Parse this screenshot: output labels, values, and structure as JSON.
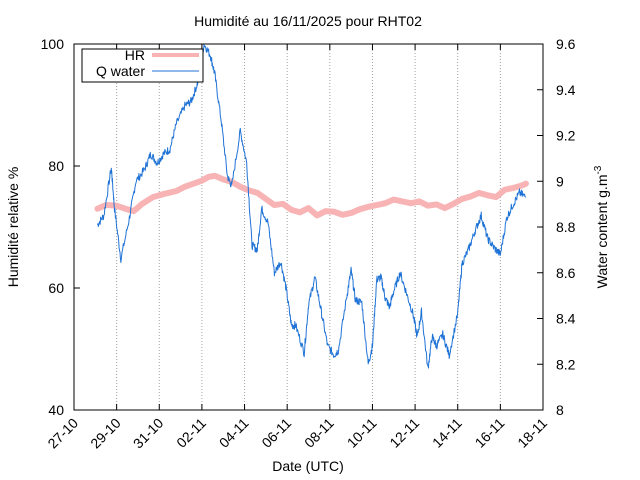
{
  "chart_data": {
    "type": "line",
    "title": "Humidité au 16/11/2025 pour RHT02",
    "xlabel": "Date (UTC)",
    "ylabel": "Humidité relative %",
    "y2label_main": "Water content g.m",
    "y2label_sup": "-3",
    "xlim": [
      0,
      22
    ],
    "ylim": [
      40,
      100
    ],
    "y2lim": [
      8,
      9.6
    ],
    "grid": "vertical-dotted",
    "legend_position": "top-left",
    "x_ticks": [
      {
        "pos": 0,
        "label": "27-10"
      },
      {
        "pos": 2,
        "label": "29-10"
      },
      {
        "pos": 4,
        "label": "31-10"
      },
      {
        "pos": 6,
        "label": "02-11"
      },
      {
        "pos": 8,
        "label": "04-11"
      },
      {
        "pos": 10,
        "label": "06-11"
      },
      {
        "pos": 12,
        "label": "08-11"
      },
      {
        "pos": 14,
        "label": "10-11"
      },
      {
        "pos": 16,
        "label": "12-11"
      },
      {
        "pos": 18,
        "label": "14-11"
      },
      {
        "pos": 20,
        "label": "16-11"
      },
      {
        "pos": 22,
        "label": "18-11"
      }
    ],
    "y_ticks": [
      "40",
      "60",
      "80",
      "100"
    ],
    "y2_ticks": [
      "8",
      "8.2",
      "8.4",
      "8.6",
      "8.8",
      "9",
      "9.2",
      "9.4",
      "9.6"
    ],
    "series": [
      {
        "name": "HR",
        "axis": "left",
        "color": "#f8b4b4",
        "x": [
          1.1,
          1.5,
          2.0,
          2.4,
          2.8,
          3.2,
          3.7,
          4.2,
          4.8,
          5.2,
          5.6,
          6.0,
          6.3,
          6.6,
          7.0,
          7.4,
          7.8,
          8.2,
          8.6,
          9.0,
          9.4,
          9.8,
          10.2,
          10.6,
          11.0,
          11.4,
          11.8,
          12.2,
          12.6,
          13.0,
          13.4,
          13.8,
          14.2,
          14.6,
          15.0,
          15.4,
          15.8,
          16.2,
          16.6,
          17.0,
          17.4,
          17.8,
          18.2,
          18.6,
          19.0,
          19.4,
          19.8,
          20.2,
          20.6,
          21.0,
          21.2
        ],
        "y": [
          73.0,
          73.6,
          73.5,
          73.0,
          72.6,
          73.8,
          74.9,
          75.4,
          75.9,
          76.6,
          77.1,
          77.6,
          78.2,
          78.4,
          77.8,
          77.4,
          76.6,
          76.0,
          75.6,
          74.6,
          73.6,
          73.8,
          72.8,
          72.4,
          73.1,
          71.9,
          72.6,
          72.5,
          72.0,
          72.3,
          72.9,
          73.3,
          73.6,
          73.9,
          74.5,
          74.2,
          73.9,
          74.2,
          73.5,
          73.7,
          73.1,
          73.8,
          74.6,
          75.0,
          75.6,
          75.2,
          74.9,
          76.1,
          76.4,
          76.8,
          77.1
        ]
      },
      {
        "name": "Q water",
        "axis": "right",
        "color": "#1f73d6",
        "x": [
          1.1,
          1.4,
          1.75,
          1.9,
          2.2,
          2.6,
          2.9,
          3.3,
          3.6,
          3.9,
          4.2,
          4.5,
          4.8,
          5.2,
          5.5,
          5.8,
          6.1,
          6.4,
          6.6,
          6.9,
          7.2,
          7.4,
          7.8,
          8.1,
          8.35,
          8.6,
          8.8,
          9.1,
          9.4,
          9.7,
          9.95,
          10.2,
          10.4,
          10.8,
          11.0,
          11.3,
          11.6,
          11.9,
          12.2,
          12.4,
          12.8,
          13.0,
          13.2,
          13.5,
          13.8,
          14.0,
          14.2,
          14.4,
          14.6,
          14.8,
          15.0,
          15.3,
          15.6,
          15.9,
          16.1,
          16.3,
          16.6,
          16.8,
          17.0,
          17.3,
          17.6,
          18.0,
          18.2,
          18.5,
          18.8,
          19.1,
          19.4,
          19.7,
          20.0,
          20.3,
          20.6,
          20.9,
          21.2
        ],
        "y": [
          8.81,
          8.85,
          9.06,
          8.88,
          8.66,
          8.84,
          9.0,
          9.05,
          9.12,
          9.08,
          9.12,
          9.14,
          9.25,
          9.33,
          9.35,
          9.43,
          9.6,
          9.55,
          9.47,
          9.27,
          9.02,
          8.98,
          9.22,
          9.08,
          8.72,
          8.7,
          8.88,
          8.82,
          8.6,
          8.65,
          8.53,
          8.37,
          8.37,
          8.25,
          8.46,
          8.58,
          8.43,
          8.28,
          8.24,
          8.26,
          8.5,
          8.61,
          8.48,
          8.47,
          8.2,
          8.28,
          8.57,
          8.58,
          8.49,
          8.45,
          8.52,
          8.6,
          8.51,
          8.42,
          8.32,
          8.43,
          8.18,
          8.32,
          8.28,
          8.33,
          8.24,
          8.42,
          8.64,
          8.7,
          8.78,
          8.85,
          8.75,
          8.71,
          8.68,
          8.84,
          8.9,
          8.95,
          8.93
        ]
      }
    ]
  }
}
